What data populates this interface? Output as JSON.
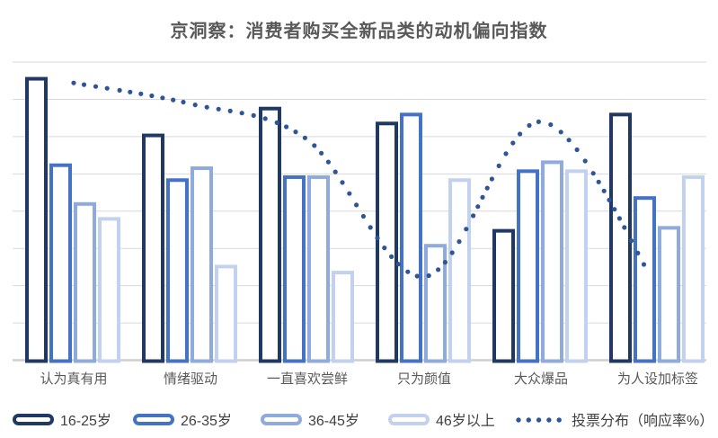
{
  "title": "京洞察：消费者购买全新品类的动机偏向指数",
  "colors": {
    "title_text": "#595959",
    "axis_label_text": "#595959",
    "legend_text": "#404040",
    "gridline": "#d9d9d9",
    "baseline": "#cfcfcf",
    "background": "#ffffff"
  },
  "chart_data": {
    "type": "bar",
    "title": "京洞察：消费者购买全新品类的动机偏向指数",
    "categories": [
      "认为真有用",
      "情绪驱动",
      "一直喜欢尝鲜",
      "只为颜值",
      "大众爆品",
      "为人设加标签"
    ],
    "series": [
      {
        "name": "16-25岁",
        "color": "#1f3864",
        "values": [
          95,
          76,
          85,
          80,
          44,
          83
        ]
      },
      {
        "name": "26-35岁",
        "color": "#4472c4",
        "values": [
          66,
          61,
          62,
          83,
          64,
          55
        ]
      },
      {
        "name": "36-45岁",
        "color": "#8faadc",
        "values": [
          53,
          65,
          62,
          39,
          67,
          45
        ]
      },
      {
        "name": "46岁以上",
        "color": "#c2d2ee",
        "values": [
          48,
          32,
          30,
          61,
          64,
          62
        ]
      }
    ],
    "line_series": {
      "name": "投票分布（响应率%）",
      "color": "#2e5597",
      "style": "dotted-smooth",
      "values": [
        93,
        86,
        74,
        28,
        80,
        24
      ]
    },
    "bar_style": "hollow-outline",
    "xlabel": "",
    "ylabel": "",
    "ylim": [
      0,
      100
    ],
    "y_axis_labels_visible": false,
    "gridlines": 9,
    "grid": true,
    "legend_position": "bottom"
  },
  "legend": {
    "items": [
      {
        "label": "16-25岁",
        "type": "bar",
        "color": "#1f3864"
      },
      {
        "label": "26-35岁",
        "type": "bar",
        "color": "#4472c4"
      },
      {
        "label": "36-45岁",
        "type": "bar",
        "color": "#8faadc"
      },
      {
        "label": "46岁以上",
        "type": "bar",
        "color": "#c2d2ee"
      },
      {
        "label": "投票分布（响应率%）",
        "type": "dotted-line",
        "color": "#2e5597"
      }
    ]
  }
}
